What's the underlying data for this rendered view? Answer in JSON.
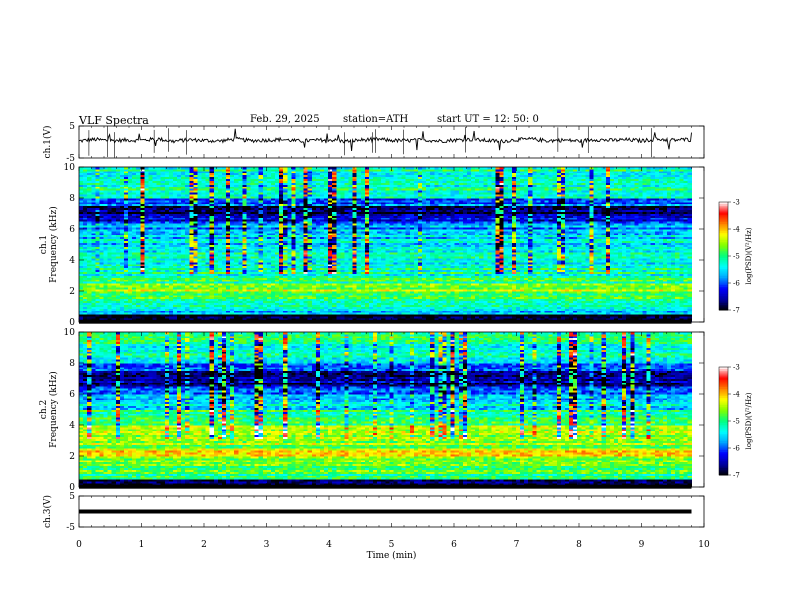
{
  "header": {
    "title": "VLF  Spectra",
    "date": "Feb. 29, 2025",
    "station": "station=ATH",
    "start": "start  UT  =   12: 50: 0"
  },
  "chart_data": [
    {
      "id": "ch1-waveform",
      "type": "line",
      "ylabel": "ch.1(V)",
      "ylim": [
        -5,
        5
      ],
      "yticks": [
        "5",
        "-5"
      ],
      "xlim": [
        0,
        10
      ],
      "x": [
        0.0,
        0.25,
        0.5,
        0.75,
        1.0,
        1.25,
        1.5,
        1.75,
        2.0,
        2.25,
        2.5,
        2.75,
        3.0,
        3.25,
        3.5,
        3.75,
        4.0,
        4.25,
        4.5,
        4.75,
        5.0,
        5.25,
        5.5,
        5.75,
        6.0,
        6.25,
        6.5,
        6.75,
        7.0,
        7.25,
        7.5,
        7.75,
        8.0,
        8.25,
        8.5,
        8.75,
        9.0,
        9.25,
        9.5,
        9.75,
        9.8
      ],
      "values": [
        0.3,
        0.8,
        0.4,
        0.6,
        0.5,
        1.0,
        0.2,
        0.7,
        0.5,
        0.3,
        0.9,
        0.4,
        0.6,
        0.8,
        0.3,
        0.5,
        0.7,
        0.2,
        0.6,
        0.9,
        0.5,
        0.4,
        0.7,
        0.3,
        0.6,
        0.8,
        0.5,
        0.2,
        0.7,
        0.9,
        0.4,
        0.6,
        0.3,
        0.8,
        0.5,
        0.7,
        0.4,
        0.9,
        0.6,
        0.8,
        0.5
      ]
    },
    {
      "id": "ch1-spectrogram",
      "type": "heatmap",
      "ylabel": "ch.1\nFrequency (kHz)",
      "ylim": [
        0,
        10
      ],
      "yticks": [
        "0",
        "2",
        "4",
        "6",
        "8",
        "10"
      ],
      "xlim": [
        0,
        10
      ],
      "data_extent_min": 9.8,
      "freq_bands_khz": [
        0.0,
        0.5,
        1.0,
        1.5,
        2.0,
        2.5,
        3.0,
        3.5,
        4.0,
        4.5,
        5.0,
        5.5,
        6.0,
        6.5,
        7.0,
        7.5,
        8.0,
        8.5,
        9.0,
        9.5
      ],
      "band_log_psd": [
        -7.0,
        -5.6,
        -5.3,
        -5.0,
        -4.6,
        -5.0,
        -5.2,
        -5.4,
        -5.3,
        -5.4,
        -5.5,
        -5.6,
        -5.8,
        -6.3,
        -6.7,
        -6.0,
        -5.4,
        -5.2,
        -5.2,
        -5.2
      ],
      "colorbar": {
        "label": "log(PSD)(V²/Hz)",
        "range": [
          -7,
          -3
        ],
        "ticks": [
          "-3",
          "-4",
          "-5",
          "-6",
          "-7"
        ]
      }
    },
    {
      "id": "ch2-spectrogram",
      "type": "heatmap",
      "ylabel": "ch.2\nFrequency (kHz)",
      "ylim": [
        0,
        10
      ],
      "yticks": [
        "0",
        "2",
        "4",
        "6",
        "8",
        "10"
      ],
      "xlim": [
        0,
        10
      ],
      "data_extent_min": 9.8,
      "freq_bands_khz": [
        0.0,
        0.5,
        1.0,
        1.5,
        2.0,
        2.5,
        3.0,
        3.5,
        4.0,
        4.5,
        5.0,
        5.5,
        6.0,
        6.5,
        7.0,
        7.5,
        8.0,
        8.5,
        9.0,
        9.5
      ],
      "band_log_psd": [
        -6.8,
        -5.0,
        -4.8,
        -4.6,
        -4.2,
        -4.6,
        -4.7,
        -4.5,
        -4.9,
        -5.0,
        -5.4,
        -5.7,
        -6.2,
        -6.6,
        -6.7,
        -5.8,
        -5.3,
        -5.2,
        -5.2,
        -5.2
      ],
      "colorbar": {
        "label": "log(PSD)(V²/Hz)",
        "range": [
          -7,
          -3
        ],
        "ticks": [
          "-3",
          "-4",
          "-5",
          "-6",
          "-7"
        ]
      }
    },
    {
      "id": "ch3-waveform",
      "type": "line",
      "ylabel": "ch.3(V)",
      "ylim": [
        -5,
        5
      ],
      "yticks": [
        "5",
        "-5"
      ],
      "xlim": [
        0,
        10
      ],
      "xlabel": "Time  (min)",
      "xticks": [
        "0",
        "1",
        "2",
        "3",
        "4",
        "5",
        "6",
        "7",
        "8",
        "9",
        "10"
      ],
      "x": [
        0.0,
        9.8
      ],
      "values": [
        0.0,
        0.0
      ]
    }
  ],
  "colors": {
    "colormap": [
      "#000000",
      "#0000a0",
      "#0000ff",
      "#00a0ff",
      "#00ffff",
      "#00ff80",
      "#80ff00",
      "#ffff00",
      "#ff8000",
      "#ff0000",
      "#ffffff"
    ],
    "waveform": "#000000"
  }
}
